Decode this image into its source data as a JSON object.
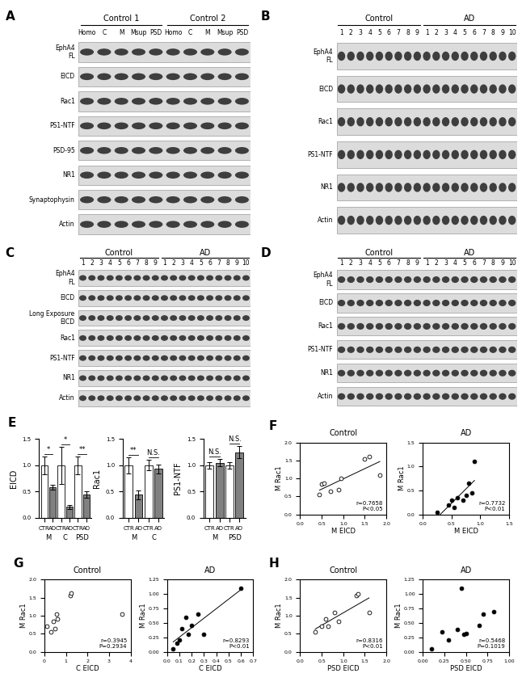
{
  "blots": [
    {
      "panel": "A",
      "groups": [
        {
          "name": "Control 1",
          "lanes": [
            "Homo",
            "C",
            "M",
            "Msup",
            "PSD"
          ]
        },
        {
          "name": "Control 2",
          "lanes": [
            "Homo",
            "C",
            "M",
            "Msup",
            "PSD"
          ]
        }
      ],
      "rows": [
        "EphA4\nFL",
        "EICD",
        "Rac1",
        "PS1-NTF",
        "PSD-95",
        "NR1",
        "Synaptophysin",
        "Actin"
      ]
    },
    {
      "panel": "B",
      "groups": [
        {
          "name": "Control",
          "lanes": [
            "1",
            "2",
            "3",
            "4",
            "5",
            "6",
            "7",
            "8",
            "9"
          ]
        },
        {
          "name": "AD",
          "lanes": [
            "1",
            "2",
            "3",
            "4",
            "5",
            "6",
            "7",
            "8",
            "9",
            "10"
          ]
        }
      ],
      "rows": [
        "EphA4\nFL",
        "EICD",
        "Rac1",
        "PS1-NTF",
        "NR1",
        "Actin"
      ]
    },
    {
      "panel": "C",
      "groups": [
        {
          "name": "Control",
          "lanes": [
            "1",
            "2",
            "3",
            "4",
            "5",
            "6",
            "7",
            "8",
            "9"
          ]
        },
        {
          "name": "AD",
          "lanes": [
            "1",
            "2",
            "3",
            "4",
            "5",
            "6",
            "7",
            "8",
            "9",
            "10"
          ]
        }
      ],
      "rows": [
        "EphA4\nFL",
        "EICD",
        "Long Exposure\nEICD",
        "Rac1",
        "PS1-NTF",
        "NR1",
        "Actin"
      ]
    },
    {
      "panel": "D",
      "groups": [
        {
          "name": "Control",
          "lanes": [
            "1",
            "2",
            "3",
            "4",
            "5",
            "6",
            "7",
            "8",
            "9"
          ]
        },
        {
          "name": "AD",
          "lanes": [
            "1",
            "2",
            "3",
            "4",
            "5",
            "6",
            "7",
            "8",
            "9",
            "10"
          ]
        }
      ],
      "rows": [
        "EphA4\nFL",
        "EICD",
        "Rac1",
        "PS1-NTF",
        "NR1",
        "Actin"
      ]
    }
  ],
  "chart_data": [
    {
      "type": "bar",
      "panel": "E",
      "y_label": "EICD",
      "categories": [
        "CTR",
        "AD",
        "CTR",
        "AD",
        "CTR",
        "AD"
      ],
      "groups": [
        "M",
        "C",
        "PSD"
      ],
      "values": [
        1.0,
        0.58,
        1.0,
        0.21,
        1.0,
        0.45
      ],
      "errors": [
        0.17,
        0.05,
        0.35,
        0.04,
        0.17,
        0.06
      ],
      "significance": [
        "*",
        "*",
        "**"
      ],
      "colors": [
        "white",
        "#808080",
        "white",
        "#808080",
        "white",
        "#808080"
      ],
      "ylim": [
        0,
        1.5
      ],
      "yticks": [
        {
          "value": 0,
          "label": "0.0"
        },
        0.5,
        {
          "value": 1,
          "label": "1.0"
        },
        1.5
      ]
    },
    {
      "type": "bar",
      "y_label": "Rac1",
      "categories": [
        "CTR",
        "AD",
        "CTR",
        "AD"
      ],
      "groups": [
        "M",
        "C"
      ],
      "values": [
        1.0,
        0.44,
        1.0,
        0.93
      ],
      "errors": [
        0.15,
        0.08,
        0.1,
        0.08
      ],
      "significance": [
        "**",
        "N.S."
      ],
      "colors": [
        "white",
        "#808080",
        "white",
        "#808080"
      ],
      "ylim": [
        0,
        1.5
      ],
      "yticks": [
        {
          "value": 0,
          "label": "0.0"
        },
        0.5,
        {
          "value": 1,
          "label": "1.0"
        },
        1.5
      ]
    },
    {
      "type": "bar",
      "y_label": "PS1-NTF",
      "categories": [
        "CTR",
        "AD",
        "CTR",
        "AD"
      ],
      "groups": [
        "M",
        "PSD"
      ],
      "values": [
        1.0,
        1.05,
        1.0,
        1.25
      ],
      "errors": [
        0.06,
        0.07,
        0.06,
        0.12
      ],
      "significance": [
        "N.S.",
        "N.S."
      ],
      "colors": [
        "white",
        "#808080",
        "white",
        "#808080"
      ],
      "ylim": [
        0,
        1.5
      ],
      "yticks": [
        {
          "value": 0,
          "label": "0.0"
        },
        0.5,
        {
          "value": 1,
          "label": "1.0"
        },
        1.5
      ]
    },
    {
      "type": "regression",
      "panel": "F",
      "title": "Control",
      "x_label": "M EICD",
      "y_label": "M Rac1",
      "x": [
        0.45,
        0.5,
        0.55,
        0.7,
        0.9,
        0.95,
        1.5,
        1.6,
        1.85
      ],
      "values": [
        0.55,
        0.85,
        0.88,
        0.65,
        0.7,
        1.0,
        1.55,
        1.62,
        1.1
      ],
      "color": "white",
      "marker": "o",
      "xlim": [
        0,
        2
      ],
      "xticks": [
        {
          "value": 0,
          "label": "0.0"
        },
        0.5,
        {
          "value": 1,
          "label": "1.0"
        },
        1.5,
        {
          "value": 2,
          "label": "2.0"
        }
      ],
      "ylim": [
        0,
        2
      ],
      "yticks": [
        {
          "value": 0,
          "label": "0.0"
        },
        0.5,
        {
          "value": 1,
          "label": "1.0"
        },
        1.5,
        {
          "value": 2,
          "label": "2.0"
        }
      ],
      "annotations": [
        "r=0.7658",
        "P<0.05"
      ]
    },
    {
      "type": "regression",
      "title": "AD",
      "x_label": "M EICD",
      "y_label": "M Rac1",
      "x": [
        0.25,
        0.45,
        0.5,
        0.55,
        0.6,
        0.7,
        0.75,
        0.8,
        0.85,
        0.9
      ],
      "values": [
        0.05,
        0.2,
        0.3,
        0.15,
        0.35,
        0.3,
        0.4,
        0.65,
        0.45,
        1.1
      ],
      "color": "black",
      "marker": "o",
      "xlim": [
        0,
        1.5
      ],
      "xticks": [
        {
          "value": 0,
          "label": "0.0"
        },
        0.5,
        {
          "value": 1,
          "label": "1.0"
        },
        1.5
      ],
      "ylim": [
        0,
        1.5
      ],
      "yticks": [
        {
          "value": 0,
          "label": "0.0"
        },
        0.5,
        {
          "value": 1,
          "label": "1.0"
        },
        1.5
      ],
      "annotations": [
        "r=0.7732",
        "P<0.01"
      ]
    },
    {
      "type": "scatter",
      "panel": "G",
      "title": "Control",
      "x_label": "C EICD",
      "y_label": "M Rac1",
      "x": [
        0.1,
        0.3,
        0.4,
        0.5,
        0.55,
        0.6,
        1.2,
        1.25,
        3.6
      ],
      "values": [
        0.7,
        0.55,
        0.85,
        0.65,
        1.05,
        0.9,
        1.55,
        1.62,
        1.05
      ],
      "color": "white",
      "marker": "o",
      "xlim": [
        0,
        4
      ],
      "xticks": [
        0,
        1,
        2,
        3,
        4
      ],
      "ylim": [
        0,
        2
      ],
      "yticks": [
        {
          "value": 0,
          "label": "0.0"
        },
        0.5,
        {
          "value": 1,
          "label": "1.0"
        },
        1.5,
        {
          "value": 2,
          "label": "2.0"
        }
      ],
      "annotations": [
        "r=0.3945",
        "P=0.2934"
      ]
    },
    {
      "type": "regression",
      "title": "AD",
      "x_label": "C EICD",
      "y_label": "M Rac1",
      "x": [
        0.05,
        0.08,
        0.1,
        0.12,
        0.15,
        0.17,
        0.2,
        0.25,
        0.3,
        0.6
      ],
      "values": [
        0.05,
        0.15,
        0.2,
        0.4,
        0.6,
        0.3,
        0.45,
        0.65,
        0.3,
        1.1
      ],
      "color": "black",
      "marker": "o",
      "xlim": [
        0,
        0.7
      ],
      "xticks": [
        {
          "value": 0,
          "label": "0.0"
        },
        0.1,
        0.2,
        0.3,
        0.4,
        0.5,
        0.6,
        0.7
      ],
      "ylim": [
        0,
        1.25
      ],
      "yticks": [
        {
          "value": 0,
          "label": "0.00"
        },
        {
          "value": 0.25,
          "label": "0.25"
        },
        {
          "value": 0.5,
          "label": "0.50"
        },
        {
          "value": 0.75,
          "label": "0.75"
        },
        {
          "value": 1,
          "label": "1.00"
        },
        {
          "value": 1.25,
          "label": "1.25"
        }
      ],
      "annotations": [
        "r=0.8293",
        "P<0.01"
      ]
    },
    {
      "type": "regression",
      "panel": "H",
      "title": "Control",
      "x_label": "PSD EICD",
      "y_label": "M Rac1",
      "x": [
        0.35,
        0.5,
        0.6,
        0.65,
        0.8,
        0.9,
        1.3,
        1.35,
        1.6
      ],
      "values": [
        0.55,
        0.7,
        0.9,
        0.7,
        1.1,
        0.85,
        1.55,
        1.6,
        1.1
      ],
      "color": "white",
      "marker": "o",
      "xlim": [
        0,
        2
      ],
      "xticks": [
        {
          "value": 0,
          "label": "0.0"
        },
        0.5,
        {
          "value": 1,
          "label": "1.0"
        },
        1.5,
        {
          "value": 2,
          "label": "2.0"
        }
      ],
      "ylim": [
        0,
        2
      ],
      "yticks": [
        {
          "value": 0,
          "label": "0.0"
        },
        0.5,
        {
          "value": 1,
          "label": "1.0"
        },
        1.5,
        {
          "value": 2,
          "label": "2.0"
        }
      ],
      "annotations": [
        "r=0.8316",
        "P<0.01"
      ]
    },
    {
      "type": "scatter",
      "title": "AD",
      "x_label": "PSD EICD",
      "y_label": "M Rac1",
      "x": [
        0.1,
        0.22,
        0.3,
        0.4,
        0.45,
        0.48,
        0.5,
        0.65,
        0.7,
        0.82
      ],
      "values": [
        0.05,
        0.35,
        0.2,
        0.38,
        1.1,
        0.3,
        0.32,
        0.45,
        0.65,
        0.7
      ],
      "color": "black",
      "marker": "o",
      "xlim": [
        0,
        1.0
      ],
      "xticks": [
        {
          "value": 0,
          "label": "0.00"
        },
        0.25,
        {
          "value": 0.5,
          "label": "0.50"
        },
        0.75,
        {
          "value": 1,
          "label": "1.00"
        }
      ],
      "ylim": [
        0,
        1.25
      ],
      "yticks": [
        {
          "value": 0,
          "label": "0.00"
        },
        {
          "value": 0.25,
          "label": "0.25"
        },
        {
          "value": 0.5,
          "label": "0.50"
        },
        {
          "value": 0.75,
          "label": "0.75"
        },
        {
          "value": 1,
          "label": "1.00"
        },
        {
          "value": 1.25,
          "label": "1.25"
        }
      ],
      "annotations": [
        "r=0.5468",
        "P=0.1019"
      ]
    }
  ]
}
